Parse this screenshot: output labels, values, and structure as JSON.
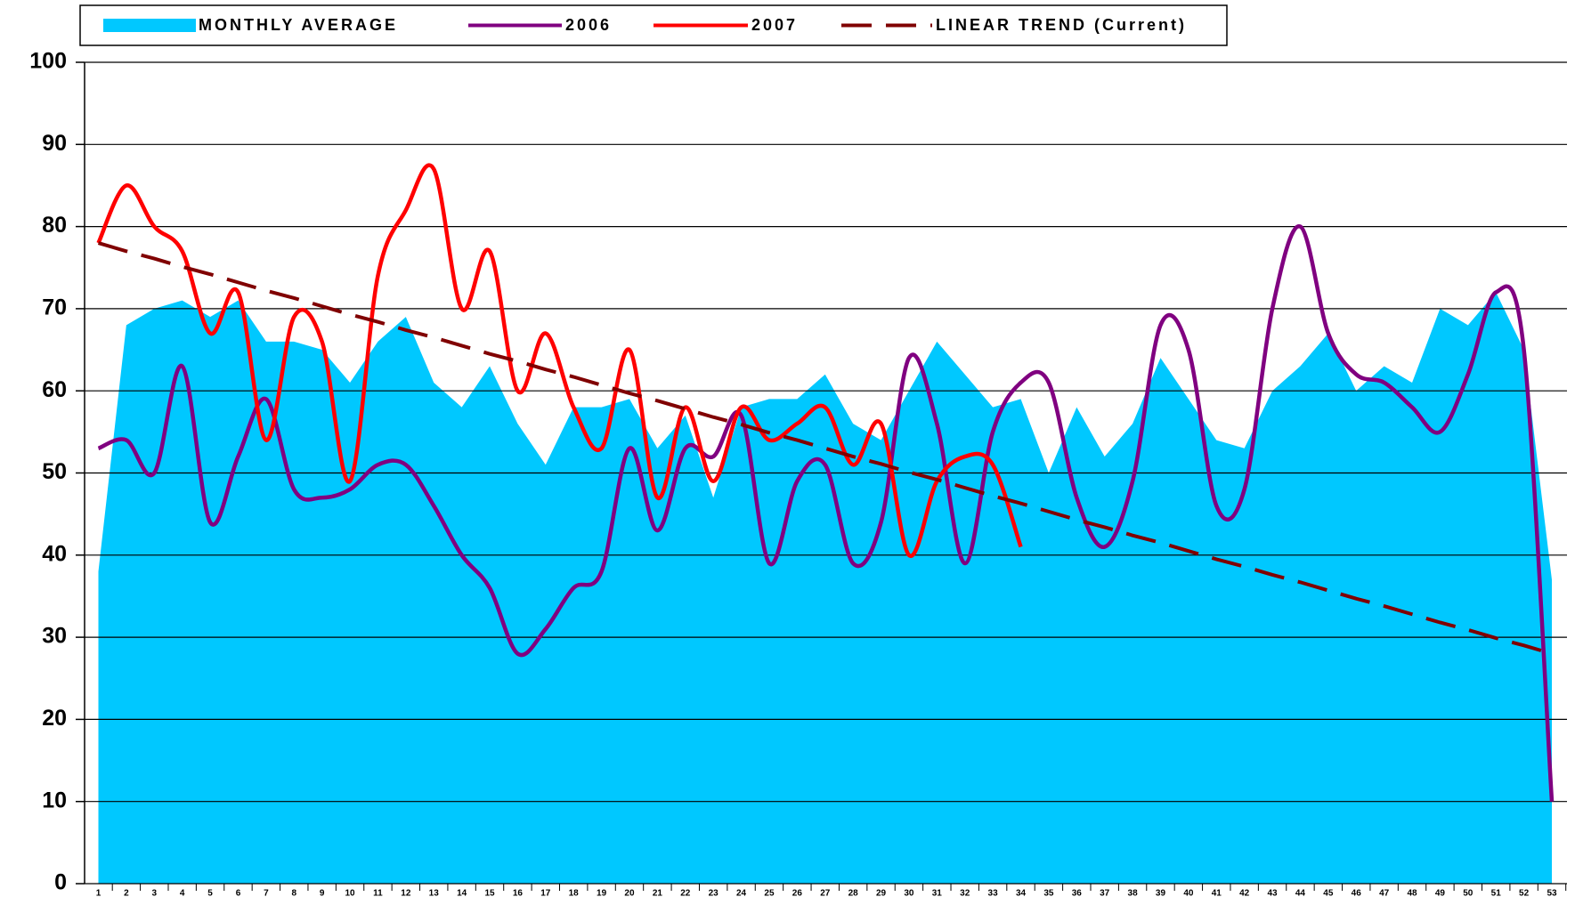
{
  "chart_data": {
    "type": "line",
    "categories": [
      "1",
      "2",
      "3",
      "4",
      "5",
      "6",
      "7",
      "8",
      "9",
      "10",
      "11",
      "12",
      "13",
      "14",
      "15",
      "16",
      "17",
      "18",
      "19",
      "20",
      "21",
      "22",
      "23",
      "24",
      "25",
      "26",
      "27",
      "28",
      "29",
      "30",
      "31",
      "32",
      "33",
      "34",
      "35",
      "36",
      "37",
      "38",
      "39",
      "40",
      "41",
      "42",
      "43",
      "44",
      "45",
      "46",
      "47",
      "48",
      "49",
      "50",
      "51",
      "52",
      "53"
    ],
    "series": [
      {
        "name": "MONTHLY AVERAGE",
        "style": "area",
        "color": "#00c8ff",
        "values": [
          38,
          68,
          70,
          71,
          69,
          71,
          66,
          66,
          65,
          61,
          66,
          69,
          61,
          58,
          63,
          56,
          51,
          58,
          58,
          59,
          53,
          57,
          47,
          58,
          59,
          59,
          62,
          56,
          54,
          60,
          66,
          62,
          58,
          59,
          50,
          58,
          52,
          56,
          64,
          59,
          54,
          53,
          60,
          63,
          67,
          60,
          63,
          61,
          70,
          68,
          72,
          65,
          37
        ]
      },
      {
        "name": "2006",
        "style": "smooth",
        "color": "#800080",
        "values": [
          53,
          54,
          50,
          63,
          44,
          52,
          59,
          48,
          47,
          48,
          51,
          51,
          46,
          40,
          36,
          28,
          31,
          36,
          38,
          53,
          43,
          53,
          52,
          57,
          39,
          49,
          51,
          39,
          44,
          64,
          56,
          39,
          55,
          61,
          61,
          47,
          41,
          49,
          68,
          65,
          46,
          48,
          70,
          80,
          67,
          62,
          61,
          58,
          55,
          62,
          72,
          65,
          10
        ]
      },
      {
        "name": "2007",
        "style": "smooth",
        "color": "#ff0000",
        "values": [
          78,
          85,
          80,
          77,
          67,
          72,
          54,
          69,
          66,
          49,
          74,
          82,
          87,
          70,
          77,
          60,
          67,
          58,
          53,
          65,
          47,
          58,
          49,
          58,
          54,
          56,
          58,
          51,
          56,
          40,
          49,
          52,
          51,
          41,
          null,
          null,
          null,
          null,
          null,
          null,
          null,
          null,
          null,
          null,
          null,
          null,
          null,
          null,
          null,
          null,
          null,
          null,
          null
        ]
      },
      {
        "name": "LINEAR TREND (Current)",
        "style": "dashed",
        "color": "#800000",
        "values": [
          78,
          77.0,
          76.1,
          75.1,
          74.2,
          73.2,
          72.2,
          71.3,
          70.3,
          69.3,
          68.4,
          67.4,
          66.5,
          65.5,
          64.5,
          63.6,
          62.6,
          61.7,
          60.7,
          59.7,
          58.8,
          57.8,
          56.8,
          55.9,
          54.9,
          54.0,
          53.0,
          52.0,
          51.1,
          50.1,
          49.2,
          48.2,
          47.2,
          46.3,
          45.3,
          44.3,
          43.4,
          42.4,
          41.5,
          40.5,
          39.5,
          38.6,
          37.6,
          36.7,
          35.7,
          34.7,
          33.8,
          32.8,
          31.8,
          30.9,
          29.9,
          29.0,
          28.0
        ]
      }
    ],
    "ylim": [
      0,
      100
    ],
    "yticks": [
      0,
      10,
      20,
      30,
      40,
      50,
      60,
      70,
      80,
      90,
      100
    ],
    "grid": true,
    "legend": "top"
  }
}
